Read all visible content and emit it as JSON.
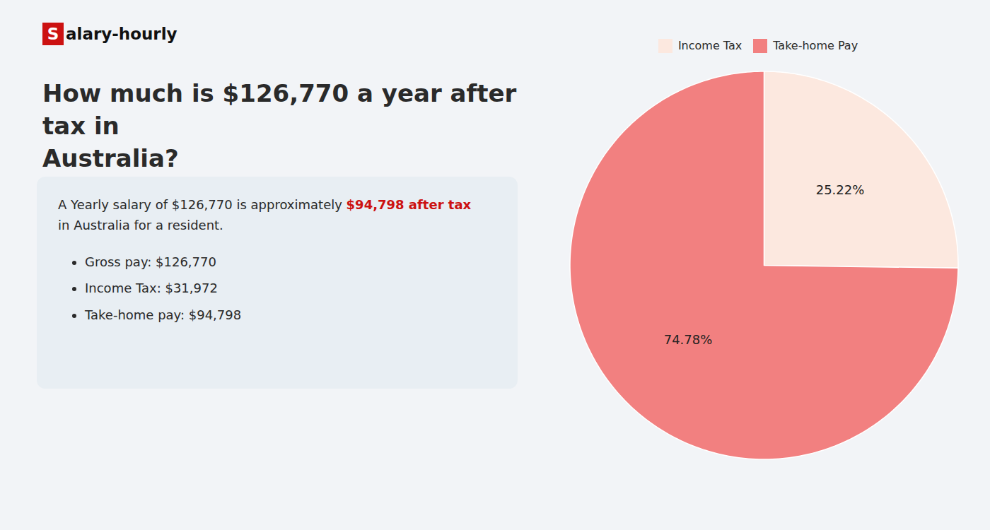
{
  "chart_data": {
    "type": "pie",
    "title": "How much is $126,770 a year after tax in\nAustralia?",
    "annotations": [
      "S",
      "alary-hourly",
      "A Yearly salary of $126,770 is approximately ",
      "$94,798 after tax",
      "in Australia for a resident.",
      "Gross pay: $126,770",
      "Income Tax: $31,972",
      "Take-home pay: $94,798"
    ],
    "categories": [
      "Income Tax",
      "Take-home Pay"
    ],
    "values": [
      25.22,
      74.78
    ],
    "value_labels": [
      "25.22%",
      "74.78%"
    ],
    "colors": [
      "#fce8df",
      "#f28080"
    ],
    "data_labels": true,
    "legend": "top"
  }
}
